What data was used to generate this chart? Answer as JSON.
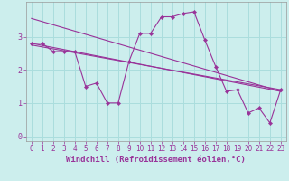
{
  "xlabel": "Windchill (Refroidissement éolien,°C)",
  "background_color": "#cceeed",
  "grid_color": "#aadddd",
  "line_color": "#993399",
  "x_values": [
    0,
    1,
    2,
    3,
    4,
    5,
    6,
    7,
    8,
    9,
    10,
    11,
    12,
    13,
    14,
    15,
    16,
    17,
    18,
    19,
    20,
    21,
    22,
    23
  ],
  "series1": [
    2.8,
    2.8,
    2.55,
    2.55,
    2.55,
    1.5,
    1.6,
    1.0,
    1.0,
    2.25,
    3.1,
    3.1,
    3.6,
    3.6,
    3.7,
    3.75,
    2.9,
    2.1,
    1.35,
    1.4,
    0.7,
    0.85,
    0.4,
    1.4
  ],
  "trend1_x": [
    0,
    23
  ],
  "trend1_y": [
    3.55,
    1.35
  ],
  "trend2_x": [
    0,
    23
  ],
  "trend2_y": [
    2.8,
    1.35
  ],
  "trend3_x": [
    0,
    23
  ],
  "trend3_y": [
    2.75,
    1.4
  ],
  "ylim": [
    -0.15,
    4.05
  ],
  "xlim": [
    -0.5,
    23.5
  ],
  "yticks": [
    0,
    1,
    2,
    3
  ],
  "xticks": [
    0,
    1,
    2,
    3,
    4,
    5,
    6,
    7,
    8,
    9,
    10,
    11,
    12,
    13,
    14,
    15,
    16,
    17,
    18,
    19,
    20,
    21,
    22,
    23
  ],
  "tick_fontsize": 5.5,
  "label_fontsize": 6.5
}
